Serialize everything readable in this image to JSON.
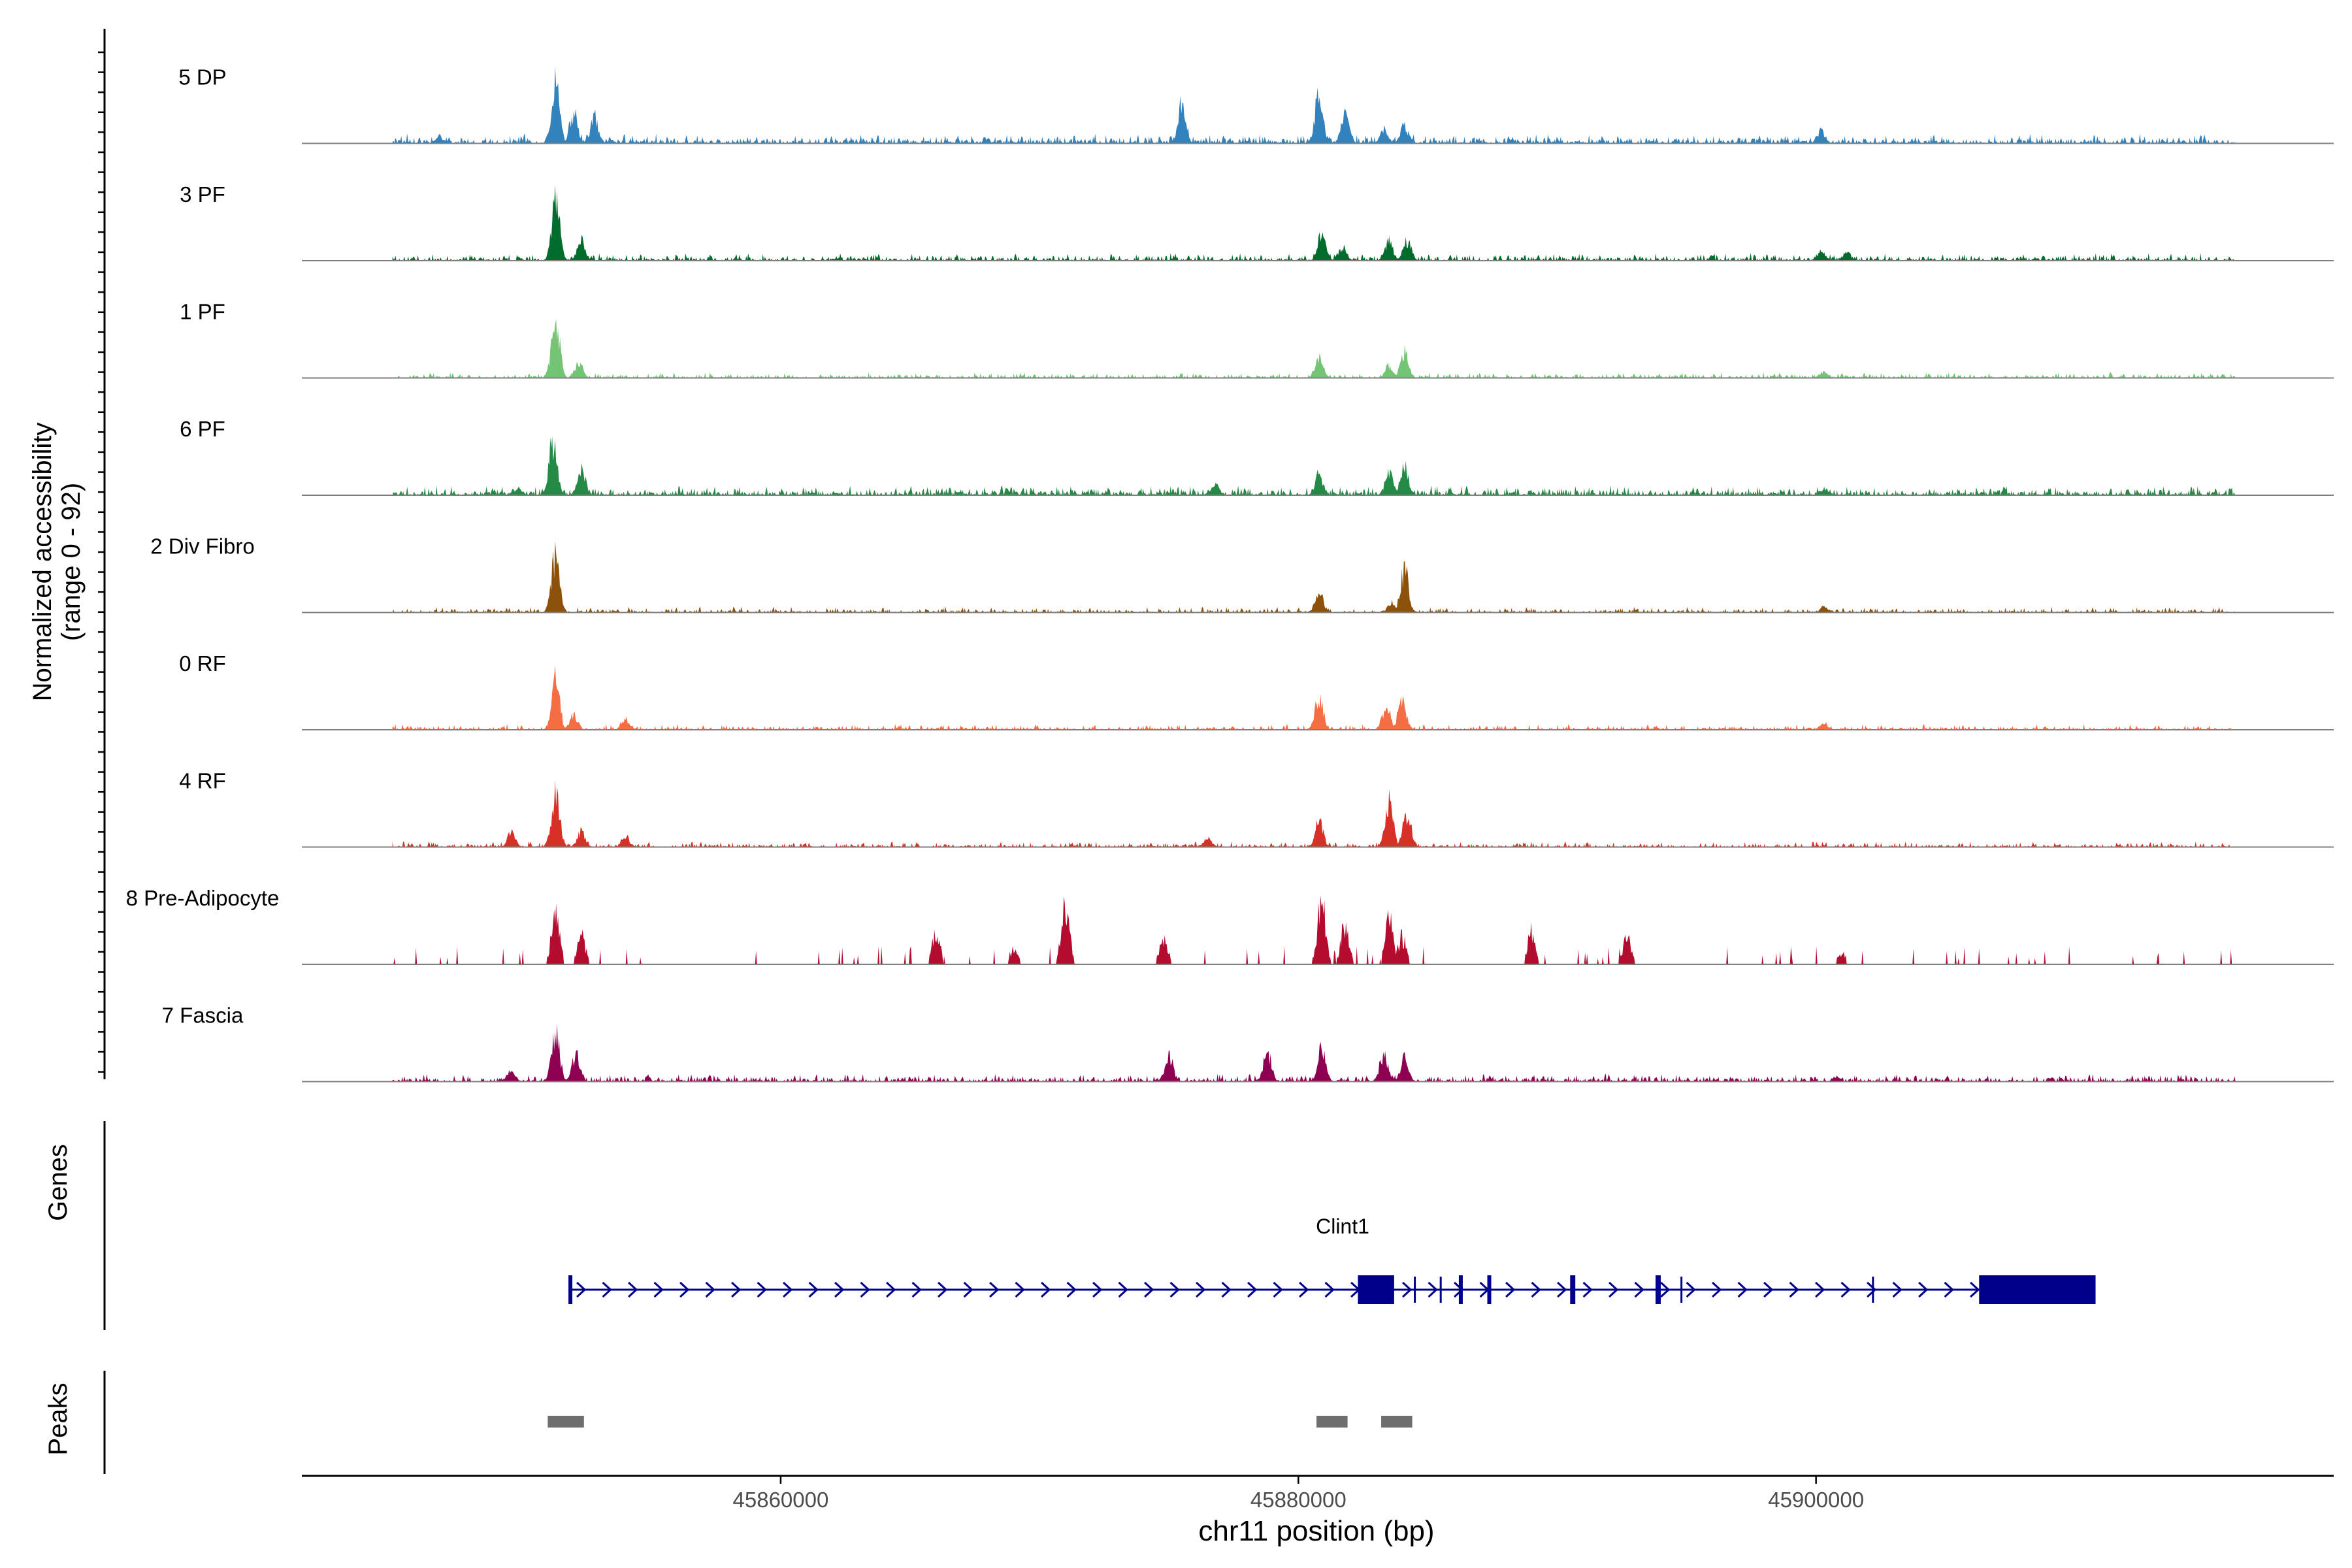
{
  "chart_data": {
    "type": "area",
    "title": "",
    "xlabel": "chr11 position (bp)",
    "ylabel_line1": "Normalized accessibility",
    "ylabel_line2": "(range 0 - 92)",
    "yrange": [
      0,
      92
    ],
    "xlim": [
      45841500,
      45920000
    ],
    "xticks": [
      45860000,
      45880000,
      45900000
    ],
    "xtick_labels": [
      "45860000",
      "45880000",
      "45900000"
    ],
    "genes_label": "Genes",
    "peaks_label": "Peaks",
    "tracks": [
      {
        "name": "5 DP",
        "color": "#3182bd",
        "peaks": [
          [
            45846800,
            10
          ],
          [
            45851300,
            88
          ],
          [
            45852000,
            45
          ],
          [
            45852800,
            40
          ],
          [
            45875500,
            60
          ],
          [
            45880800,
            72
          ],
          [
            45881800,
            40
          ],
          [
            45883300,
            20
          ],
          [
            45884100,
            26
          ],
          [
            45900200,
            18
          ]
        ],
        "noise": 5,
        "density": 0.9
      },
      {
        "name": "3 PF",
        "color": "#006d2c",
        "peaks": [
          [
            45851300,
            86
          ],
          [
            45852300,
            30
          ],
          [
            45880900,
            40
          ],
          [
            45881700,
            20
          ],
          [
            45883500,
            28
          ],
          [
            45884200,
            30
          ],
          [
            45900200,
            14
          ],
          [
            45901200,
            12
          ]
        ],
        "noise": 4,
        "density": 0.8
      },
      {
        "name": "1 PF",
        "color": "#74c476",
        "peaks": [
          [
            45851300,
            84
          ],
          [
            45852200,
            22
          ],
          [
            45880800,
            30
          ],
          [
            45883500,
            18
          ],
          [
            45884100,
            40
          ],
          [
            45900300,
            10
          ]
        ],
        "noise": 3,
        "density": 0.8
      },
      {
        "name": "6 PF",
        "color": "#238b45",
        "peaks": [
          [
            45851200,
            80
          ],
          [
            45852300,
            38
          ],
          [
            45849900,
            10
          ],
          [
            45876800,
            14
          ],
          [
            45880800,
            30
          ],
          [
            45883500,
            30
          ],
          [
            45884100,
            40
          ],
          [
            45900300,
            10
          ]
        ],
        "noise": 5,
        "density": 0.9
      },
      {
        "name": "2 Div Fibro",
        "color": "#8c510a",
        "peaks": [
          [
            45851300,
            82
          ],
          [
            45880800,
            30
          ],
          [
            45883600,
            14
          ],
          [
            45884100,
            62
          ],
          [
            45900300,
            8
          ]
        ],
        "noise": 3,
        "density": 0.7
      },
      {
        "name": "0 RF",
        "color": "#f46d43",
        "peaks": [
          [
            45851300,
            72
          ],
          [
            45852000,
            22
          ],
          [
            45854000,
            16
          ],
          [
            45880800,
            48
          ],
          [
            45883400,
            36
          ],
          [
            45884000,
            44
          ],
          [
            45900300,
            10
          ]
        ],
        "noise": 3,
        "density": 0.7
      },
      {
        "name": "4 RF",
        "color": "#d73027",
        "peaks": [
          [
            45849600,
            22
          ],
          [
            45851300,
            80
          ],
          [
            45852300,
            22
          ],
          [
            45854000,
            16
          ],
          [
            45880800,
            36
          ],
          [
            45883500,
            68
          ],
          [
            45884200,
            52
          ],
          [
            45876500,
            12
          ]
        ],
        "noise": 3,
        "density": 0.7
      },
      {
        "name": "8 Pre-Adipocyte",
        "color": "#b30c2e",
        "peaks": [
          [
            45851300,
            84
          ],
          [
            45852300,
            40
          ],
          [
            45866000,
            46
          ],
          [
            45869000,
            22
          ],
          [
            45871000,
            86
          ],
          [
            45874800,
            38
          ],
          [
            45880900,
            92
          ],
          [
            45881800,
            60
          ],
          [
            45883500,
            74
          ],
          [
            45884000,
            40
          ],
          [
            45889000,
            48
          ],
          [
            45892700,
            40
          ],
          [
            45901000,
            16
          ]
        ],
        "noise": 0,
        "density": 0.35
      },
      {
        "name": "7 Fascia",
        "color": "#8e0152",
        "peaks": [
          [
            45849600,
            16
          ],
          [
            45851300,
            72
          ],
          [
            45852100,
            38
          ],
          [
            45875000,
            38
          ],
          [
            45878800,
            44
          ],
          [
            45880900,
            46
          ],
          [
            45883300,
            40
          ],
          [
            45884100,
            32
          ],
          [
            45900800,
            8
          ]
        ],
        "noise": 4,
        "density": 0.85
      }
    ],
    "gene": {
      "name": "Clint1",
      "start": 45851800,
      "end": 45910800,
      "exons": [
        [
          45851800,
          45851950
        ],
        [
          45882300,
          45883700
        ],
        [
          45886200,
          45886300
        ],
        [
          45887300,
          45887450
        ],
        [
          45890500,
          45890700
        ],
        [
          45893800,
          45894000
        ],
        [
          45906300,
          45910800
        ]
      ],
      "thin_ticks": [
        45883000,
        45884500,
        45885500,
        45894800,
        45902200
      ]
    },
    "peak_regions": [
      [
        45851000,
        45852400
      ],
      [
        45880700,
        45881900
      ],
      [
        45883200,
        45884400
      ]
    ]
  }
}
